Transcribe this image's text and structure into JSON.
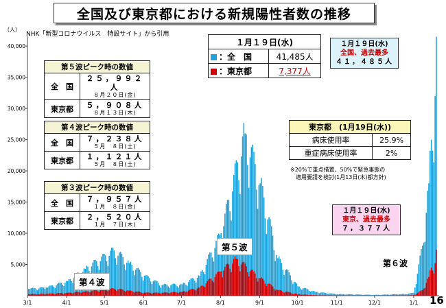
{
  "title": "全国及び東京都における新規陽性者数の推移",
  "unit_label": "（人）",
  "source": "NHK「新型コロナウイルス　特設サイト」から引用",
  "page_number": "16",
  "summary": {
    "date": "１月１９日(水)",
    "rows": [
      {
        "label": "：全　国",
        "value": "41,485人"
      },
      {
        "label": "：東京都",
        "value": "7,377人"
      }
    ],
    "colors": {
      "national": "#1fa3d9",
      "tokyo": "#cc0000"
    }
  },
  "peak5": {
    "header": "第５波ピーク時の数値",
    "national_label": "全　国",
    "national_value": "２５，９９２人",
    "national_date": "８月２０日(金)",
    "tokyo_label": "東京都",
    "tokyo_value": "５，９０８人",
    "tokyo_date": "８月１３日(木)"
  },
  "peak4": {
    "header": "第４波ピーク時の数値",
    "national_label": "全　国",
    "national_value": "７，２３８人",
    "national_date": "５月　８日(土)",
    "tokyo_label": "東京都",
    "tokyo_value": "１，１２１人",
    "tokyo_date": "５月　８日(土)"
  },
  "peak3": {
    "header": "第３波ピーク時の数値",
    "national_label": "全　国",
    "national_value": "７，９５７人",
    "national_date": "１月　８日(金)",
    "tokyo_label": "東京都",
    "tokyo_value": "２，５２０人",
    "tokyo_date": "１月　７日(木)"
  },
  "bed": {
    "header": "東京都　(1月19日(水))",
    "rows": [
      {
        "label": "病床使用率",
        "value": "25.9%"
      },
      {
        "label": "重症病床使用率",
        "value": "2%"
      }
    ],
    "note1": "※20%で重点措置、50%で緊急事態の",
    "note2": "適用要請を検討(1月13日(木)都方針)"
  },
  "callout_national": {
    "line1": "１月１９日(水)",
    "line2": "全国、過去最多",
    "line3": "４１，４８５人"
  },
  "callout_tokyo": {
    "line1": "１月１９日(水)",
    "line2": "東京、過去最多",
    "line3": "７，３７７人"
  },
  "wave_labels": {
    "w4": "第４波",
    "w5": "第５波",
    "w6": "第６波"
  },
  "chart_data": {
    "type": "bar",
    "x_start": "3/1",
    "x_end": "1/19",
    "x_ticks": [
      "3/1",
      "4/1",
      "5/1",
      "6/1",
      "7/1",
      "8/1",
      "9/1",
      "10/1",
      "11/1",
      "12/1",
      "1/1"
    ],
    "y_ticks": [
      "5,000",
      "10,000",
      "15,000",
      "20,000",
      "25,000",
      "30,000",
      "35,000",
      "40,000"
    ],
    "ylim": [
      0,
      41000
    ],
    "series": [
      {
        "name": "全国",
        "color": "#1fa3d9",
        "anchors": [
          [
            "3/1",
            1100
          ],
          [
            "3/15",
            1300
          ],
          [
            "4/1",
            2300
          ],
          [
            "4/15",
            4300
          ],
          [
            "5/8",
            7238
          ],
          [
            "5/20",
            5200
          ],
          [
            "6/1",
            3200
          ],
          [
            "6/15",
            1700
          ],
          [
            "7/1",
            1800
          ],
          [
            "7/15",
            3200
          ],
          [
            "8/1",
            10000
          ],
          [
            "8/20",
            25992
          ],
          [
            "9/1",
            18000
          ],
          [
            "9/15",
            6000
          ],
          [
            "10/1",
            1500
          ],
          [
            "10/15",
            600
          ],
          [
            "11/1",
            250
          ],
          [
            "12/1",
            130
          ],
          [
            "12/25",
            250
          ],
          [
            "1/1",
            450
          ],
          [
            "1/8",
            8000
          ],
          [
            "1/13",
            18000
          ],
          [
            "1/15",
            25000
          ],
          [
            "1/18",
            32000
          ],
          [
            "1/19",
            41485
          ]
        ]
      },
      {
        "name": "東京都",
        "color": "#cc0000",
        "anchors": [
          [
            "3/1",
            230
          ],
          [
            "3/15",
            300
          ],
          [
            "4/1",
            450
          ],
          [
            "4/15",
            650
          ],
          [
            "5/8",
            1121
          ],
          [
            "5/20",
            800
          ],
          [
            "6/1",
            470
          ],
          [
            "6/15",
            450
          ],
          [
            "7/1",
            600
          ],
          [
            "7/15",
            1300
          ],
          [
            "8/1",
            3900
          ],
          [
            "8/13",
            5908
          ],
          [
            "9/1",
            2800
          ],
          [
            "9/15",
            900
          ],
          [
            "10/1",
            230
          ],
          [
            "10/15",
            70
          ],
          [
            "11/1",
            30
          ],
          [
            "12/1",
            15
          ],
          [
            "12/25",
            40
          ],
          [
            "1/1",
            80
          ],
          [
            "1/8",
            900
          ],
          [
            "1/13",
            3000
          ],
          [
            "1/15",
            4500
          ],
          [
            "1/18",
            5200
          ],
          [
            "1/19",
            7377
          ]
        ]
      }
    ]
  }
}
